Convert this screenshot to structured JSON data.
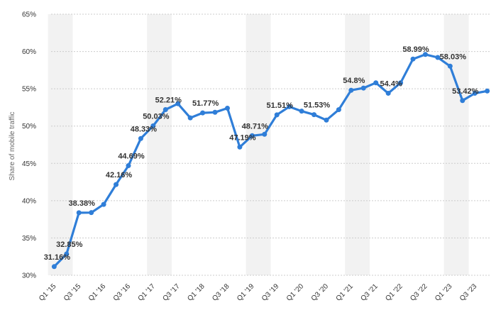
{
  "chart_data": {
    "type": "line",
    "title": "",
    "xlabel": "",
    "ylabel": "Share of mobile traffic",
    "ylim": [
      30,
      65
    ],
    "y_ticks": [
      "30%",
      "35%",
      "40%",
      "45%",
      "50%",
      "55%",
      "60%",
      "65%"
    ],
    "y_tick_values": [
      30,
      35,
      40,
      45,
      50,
      55,
      60,
      65
    ],
    "grid": "horizontal-dashed",
    "legend": "none",
    "x_tick_labels": [
      "Q1 '15",
      "Q3 '15",
      "Q1 '16",
      "Q3 '16",
      "Q1 '17",
      "Q3 '17",
      "Q1 '18",
      "Q3 '18",
      "Q1 '19",
      "Q3 '19",
      "Q1 '20",
      "Q3 '20",
      "Q1 '21",
      "Q3 '21",
      "Q1 '22",
      "Q3 '22",
      "Q1 '23",
      "Q3 '23"
    ],
    "x": [
      "Q1 '15",
      "Q2 '15",
      "Q3 '15",
      "Q4 '15",
      "Q1 '16",
      "Q2 '16",
      "Q3 '16",
      "Q4 '16",
      "Q1 '17",
      "Q2 '17",
      "Q3 '17",
      "Q4 '17",
      "Q1 '18",
      "Q2 '18",
      "Q3 '18",
      "Q4 '18",
      "Q1 '19",
      "Q2 '19",
      "Q3 '19",
      "Q4 '19",
      "Q1 '20",
      "Q2 '20",
      "Q3 '20",
      "Q4 '20",
      "Q1 '21",
      "Q2 '21",
      "Q3 '21",
      "Q4 '21",
      "Q1 '22",
      "Q2 '22",
      "Q3 '22",
      "Q4 '22",
      "Q1 '23",
      "Q2 '23",
      "Q3 '23",
      "Q4 '23"
    ],
    "series": [
      {
        "values": [
          31.16,
          32.85,
          38.38,
          38.4,
          39.5,
          42.16,
          44.69,
          48.33,
          50.03,
          52.21,
          53.0,
          51.1,
          51.77,
          51.85,
          52.4,
          47.19,
          48.71,
          48.9,
          51.51,
          52.6,
          52.0,
          51.53,
          50.8,
          52.2,
          54.8,
          55.1,
          55.8,
          54.4,
          55.8,
          58.99,
          59.6,
          59.2,
          58.03,
          53.42,
          54.4,
          54.7
        ],
        "labels": [
          "31.16%",
          "32.85%",
          "38.38%",
          "",
          "",
          "42.16%",
          "44.69%",
          "48.33%",
          "50.03%",
          "52.21%",
          "",
          "",
          "51.77%",
          "",
          "",
          "47.19%",
          "48.71%",
          "",
          "51.51%",
          "",
          "",
          "51.53%",
          "",
          "",
          "54.8%",
          "",
          "",
          "54.4%",
          "",
          "58.99%",
          "",
          "",
          "58.03%",
          "53.42%",
          "",
          ""
        ]
      }
    ],
    "colors": {
      "line": "#2f7ed8",
      "band": "#f2f2f2",
      "grid": "#cccccc"
    }
  }
}
